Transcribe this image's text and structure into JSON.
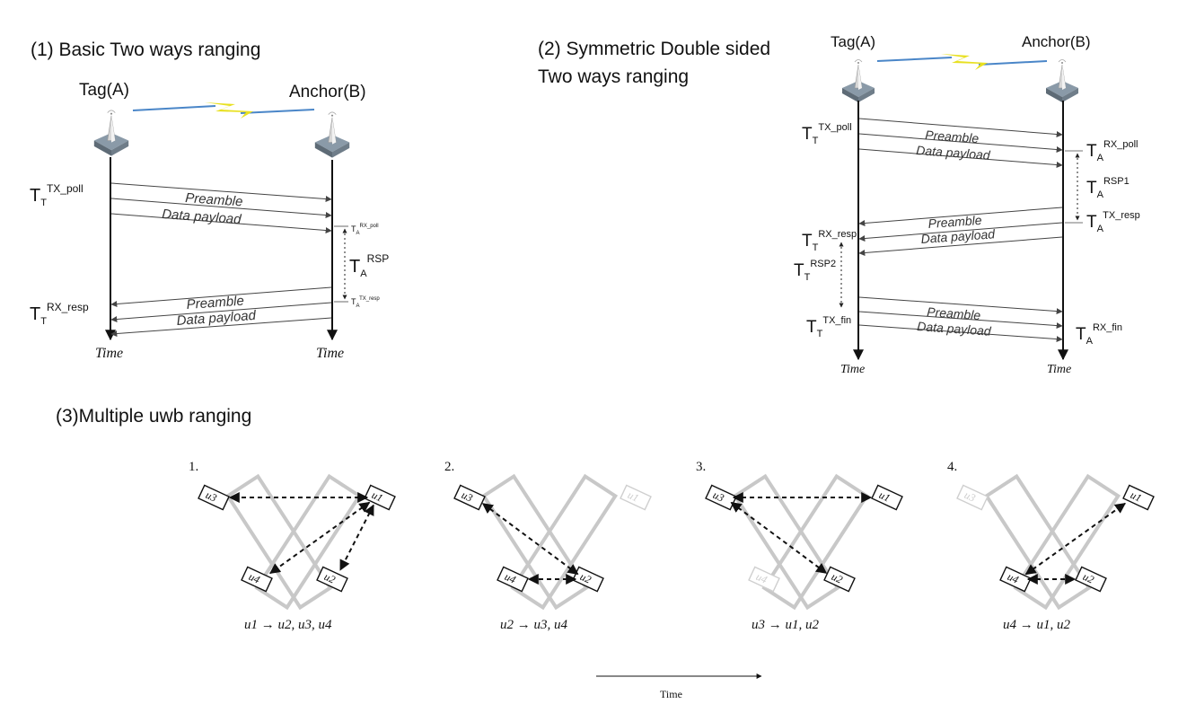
{
  "sections": {
    "s1": {
      "title": "(1) Basic Two ways ranging",
      "tag_label": "Tag(A)",
      "anchor_label": "Anchor(B)",
      "preamble": "Preamble",
      "data_payload": "Data payload",
      "time": "Time",
      "tt_tx_poll": {
        "main": "T",
        "sub": "T",
        "sup": "TX_poll"
      },
      "ta_rx_poll": {
        "main": "T",
        "sub": "A",
        "sup": "RX_poll"
      },
      "ta_rsp": {
        "main": "T",
        "sub": "A",
        "sup": "RSP"
      },
      "ta_tx_resp": {
        "main": "T",
        "sub": "A",
        "sup": "TX_resp"
      },
      "tt_rx_resp": {
        "main": "T",
        "sub": "T",
        "sup": "RX_resp"
      }
    },
    "s2": {
      "title_line1": "(2) Symmetric Double sided",
      "title_line2": "Two ways ranging",
      "tag_label": "Tag(A)",
      "anchor_label": "Anchor(B)",
      "preamble": "Preamble",
      "data_payload": "Data payload",
      "time": "Time",
      "tt_tx_poll": {
        "main": "T",
        "sub": "T",
        "sup": "TX_poll"
      },
      "ta_rx_poll": {
        "main": "T",
        "sub": "A",
        "sup": "RX_poll"
      },
      "ta_rsp1": {
        "main": "T",
        "sub": "A",
        "sup": "RSP1"
      },
      "ta_tx_resp": {
        "main": "T",
        "sub": "A",
        "sup": "TX_resp"
      },
      "tt_rx_resp": {
        "main": "T",
        "sub": "T",
        "sup": "RX_resp"
      },
      "tt_rsp2": {
        "main": "T",
        "sub": "T",
        "sup": "RSP2"
      },
      "tt_tx_fin": {
        "main": "T",
        "sub": "T",
        "sup": "TX_fin"
      },
      "ta_rx_fin": {
        "main": "T",
        "sub": "A",
        "sup": "RX_fin"
      }
    },
    "s3": {
      "title": "(3)Multiple uwb ranging",
      "time": "Time",
      "steps": [
        {
          "number": "1.",
          "formula": {
            "from": "u1",
            "to": "u2, u3, u4"
          },
          "sender": "u1"
        },
        {
          "number": "2.",
          "formula": {
            "from": "u2",
            "to": "u3, u4"
          },
          "sender": "u2"
        },
        {
          "number": "3.",
          "formula": {
            "from": "u3",
            "to": "u1, u2"
          },
          "sender": "u3"
        },
        {
          "number": "4.",
          "formula": {
            "from": "u4",
            "to": "u1, u2"
          },
          "sender": "u4"
        }
      ],
      "node_labels": {
        "u1": "u1",
        "u2": "u2",
        "u3": "u3",
        "u4": "u4"
      }
    }
  },
  "colors": {
    "lightning": "#e8e020",
    "beam": "#4a86c8",
    "panel_grey": "#c8c8c8",
    "faded_node": "#cfcfcf"
  }
}
